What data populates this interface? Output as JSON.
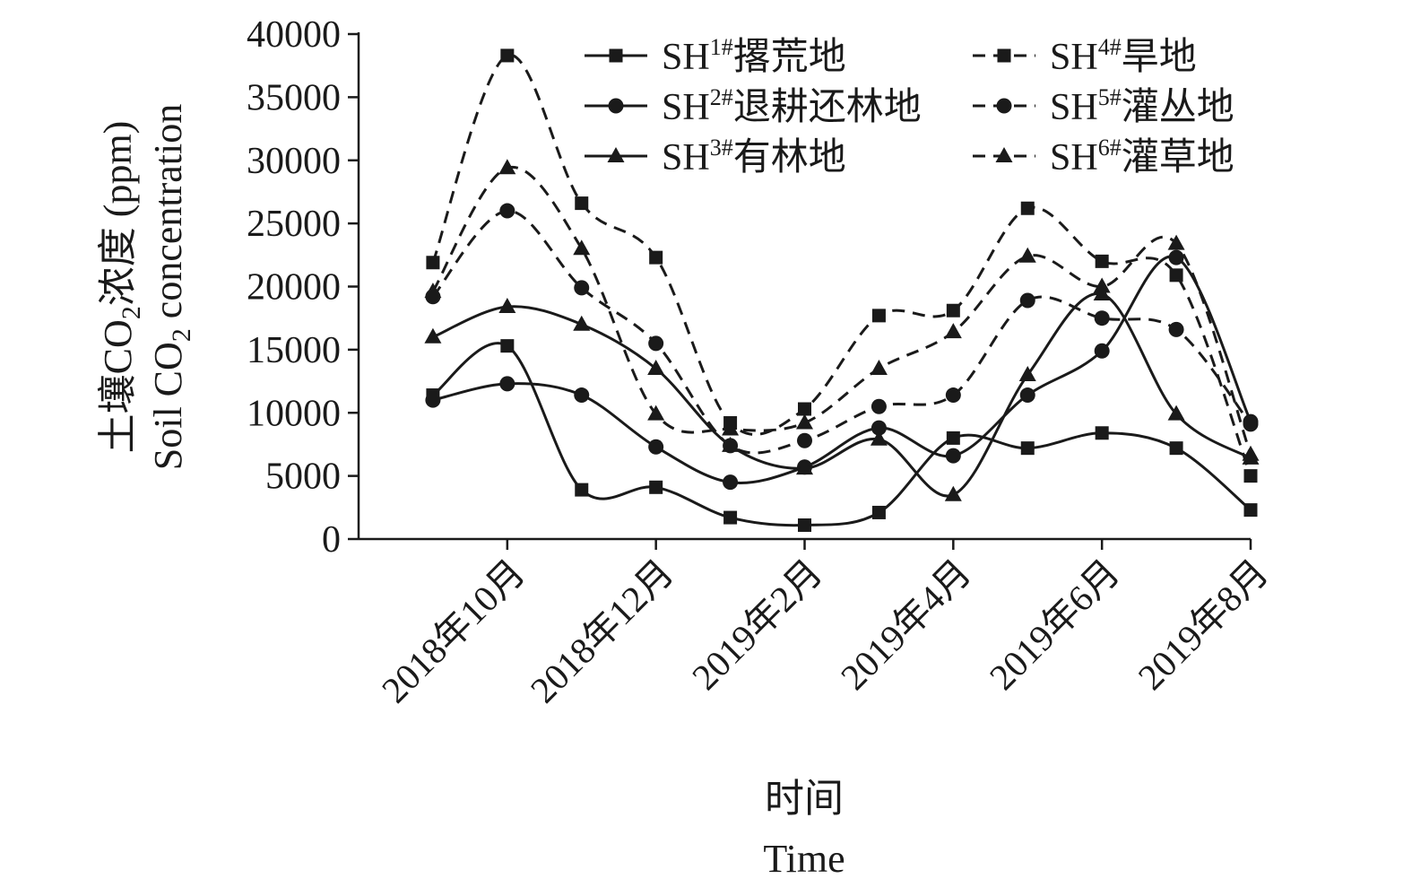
{
  "chart_data": {
    "type": "line",
    "title": "",
    "xlabel": [
      "时间",
      "Time"
    ],
    "ylabel": [
      {
        "prefix": "土壤CO",
        "sub": "2",
        "suffix": "浓度 (ppm)"
      },
      {
        "prefix": "Soil CO",
        "sub": "2",
        "suffix": " concentration"
      }
    ],
    "ylim": [
      0,
      40000
    ],
    "yticks": [
      0,
      5000,
      10000,
      15000,
      20000,
      25000,
      30000,
      35000,
      40000
    ],
    "xtick_labels": [
      {
        "x": 2,
        "label": "2018年10月"
      },
      {
        "x": 4,
        "label": "2018年12月"
      },
      {
        "x": 6,
        "label": "2019年2月"
      },
      {
        "x": 8,
        "label": "2019年4月"
      },
      {
        "x": 10,
        "label": "2019年6月"
      },
      {
        "x": 12,
        "label": "2019年8月"
      }
    ],
    "xlim": [
      0,
      12
    ],
    "x": [
      1,
      2,
      3,
      4,
      5,
      6,
      7,
      8,
      9,
      10,
      11,
      12
    ],
    "legend_position": "top-right",
    "grid": false,
    "series": [
      {
        "name": "SH1#撂荒地",
        "sup": "1#",
        "label": "撂荒地",
        "style": "solid",
        "marker": "square",
        "values": [
          11400,
          15300,
          3900,
          4100,
          1700,
          1100,
          2100,
          8000,
          7200,
          8400,
          7200,
          2300
        ]
      },
      {
        "name": "SH2#退耕还林地",
        "sup": "2#",
        "label": "退耕还林地",
        "style": "solid",
        "marker": "circle",
        "values": [
          11000,
          12300,
          11400,
          7300,
          4500,
          5700,
          8800,
          6600,
          11400,
          14900,
          22300,
          9300
        ]
      },
      {
        "name": "SH3#有林地",
        "sup": "3#",
        "label": "有林地",
        "style": "solid",
        "marker": "triangle",
        "values": [
          16000,
          18400,
          17000,
          13500,
          7400,
          5600,
          7900,
          3500,
          13000,
          19400,
          9900,
          6400
        ]
      },
      {
        "name": "SH4#旱地",
        "sup": "4#",
        "label": "旱地",
        "style": "dashed",
        "marker": "square",
        "values": [
          21900,
          38300,
          26600,
          22300,
          9200,
          10300,
          17700,
          18100,
          26200,
          22000,
          20900,
          5000
        ]
      },
      {
        "name": "SH5#灌丛地",
        "sup": "5#",
        "label": "灌丛地",
        "style": "dashed",
        "marker": "circle",
        "values": [
          19200,
          26000,
          19900,
          15500,
          7400,
          7800,
          10500,
          11400,
          18900,
          17500,
          16600,
          9100
        ]
      },
      {
        "name": "SH6#灌草地",
        "sup": "6#",
        "label": "灌草地",
        "style": "dashed",
        "marker": "triangle",
        "values": [
          19600,
          29400,
          23000,
          9900,
          8700,
          9200,
          13500,
          16400,
          22400,
          20000,
          23400,
          6700
        ]
      }
    ],
    "colors": {
      "line": "#1a1a1a",
      "background": "#ffffff"
    }
  }
}
